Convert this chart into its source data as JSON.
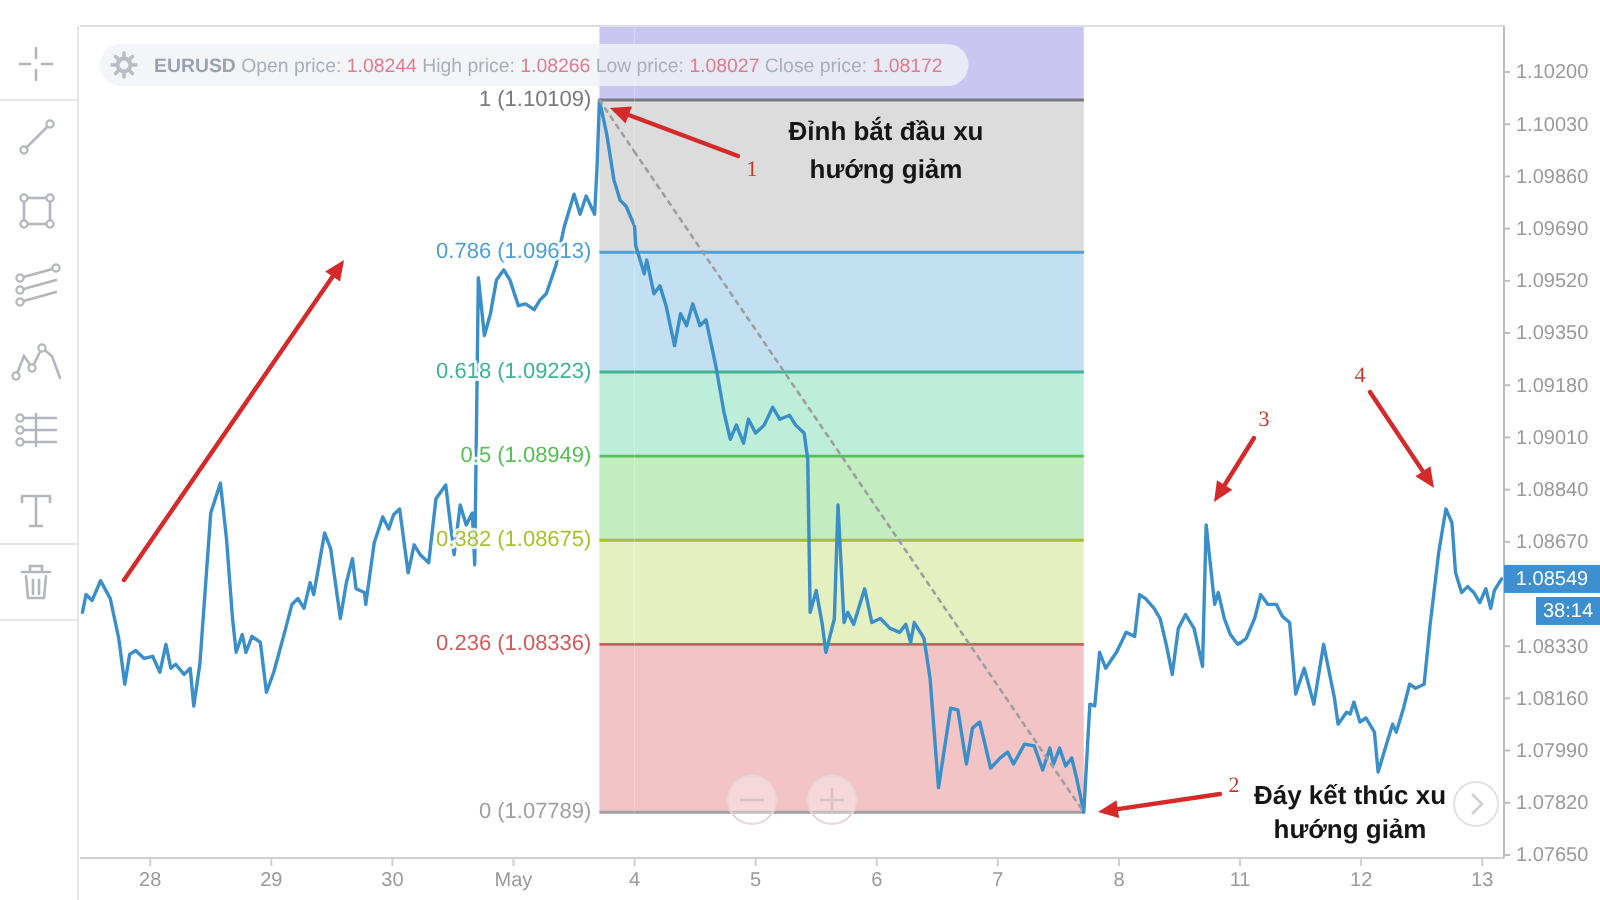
{
  "chart_data": [
    {
      "type": "line",
      "title": "EURUSD Open price: 1.08244 High price: 1.08266 Low price: 1.08027 Close price: 1.08172",
      "tick_labels": "x",
      "series": [
        {
          "color": "#3b8fc8",
          "x": [
            "--04-27T10:34",
            "--04-27T11:17",
            "--04-27T12:29",
            "--04-27T14:10",
            "--04-27T16:05",
            "--04-27T17:46",
            "--04-27T18:58",
            "--04-27T19:55",
            "--04-27T21:07",
            "--04-27T22:48",
            "--04-28T00:29",
            "--04-28T01:55",
            "--04-28T03:07",
            "--04-28T04:05",
            "--04-28T05:02",
            "--04-28T06:43",
            "--04-28T07:55",
            "--04-28T08:38",
            "--04-28T09:50",
            "--04-28T12:00",
            "--04-28T13:55",
            "--04-28T15:07",
            "--04-28T16:19",
            "--04-28T17:02",
            "--04-28T18:14",
            "--04-28T18:58",
            "--04-28T20:10",
            "--04-28T21:50",
            "--04-28T23:02",
            "--04-29T00:29",
            "--04-29T02:38",
            "--04-29T04:05",
            "--04-29T05:17",
            "--04-29T06:29",
            "--04-29T07:41",
            "--04-29T08:24",
            "--04-29T10:34",
            "--04-29T11:46",
            "--04-29T13:41",
            "--04-29T14:53",
            "--04-29T16:05",
            "--04-29T16:48",
            "--04-29T18:29",
            "--04-29T18:43",
            "--04-29T20:24",
            "--04-29T22:05",
            "--04-29T23:17",
            "--04-30T00:14",
            "--04-30T01:26",
            "--04-30T03:07",
            "--04-30T04:19",
            "--04-30T05:31",
            "--04-30T07:12",
            "--04-30T08:38",
            "--04-30T10:34",
            "--04-30T12:14",
            "--04-30T13:26",
            "--04-30T14:38",
            "--04-30T15:50",
            "--04-30T16:19",
            "--04-30T17:02",
            "--04-30T18:14",
            "--04-30T19:26",
            "--04-30T20:38",
            "--04-30T22:05",
            "--04-30T23:17",
            "--05-01T00:58",
            "--05-01T02:24",
            "--05-01T04:05",
            "--05-01T05:17",
            "--05-01T06:29",
            "--05-01T08:24",
            "--05-01T10:05",
            "--05-01T12:00",
            "--05-01T13:12",
            "--05-01T14:24",
            "--05-01T16:05",
            "--05-01T16:34",
            "--05-01T17:02",
            "--05-01T18:29",
            "--05-01T19:55",
            "--05-01T21:07",
            "--05-01T22:19",
            "--05-02T00:00"
          ],
          "values": [
            1.0844,
            1.08498,
            1.08479,
            1.08543,
            1.08485,
            1.08355,
            1.08206,
            1.08303,
            1.08316,
            1.0829,
            1.08297,
            1.08245,
            1.08336,
            1.08258,
            1.08271,
            1.08238,
            1.08258,
            1.08135,
            1.08271,
            1.08764,
            1.08861,
            1.0868,
            1.0842,
            1.0831,
            1.08368,
            1.0831,
            1.08362,
            1.08342,
            1.0818,
            1.08245,
            1.08375,
            1.08466,
            1.08485,
            1.08453,
            1.08537,
            1.08498,
            1.08699,
            1.08647,
            1.0842,
            1.08537,
            1.08615,
            1.08517,
            1.08505,
            1.08466,
            1.08667,
            1.08751,
            1.08712,
            1.08758,
            1.08777,
            1.08569,
            1.0866,
            1.08628,
            1.08602,
            1.0881,
            1.08855,
            1.08628,
            1.0879,
            1.08725,
            1.08764,
            1.08595,
            1.0953,
            1.09342,
            1.09413,
            1.09523,
            1.09556,
            1.09523,
            1.09439,
            1.09445,
            1.09426,
            1.09458,
            1.09478,
            1.09569,
            1.09698,
            1.09802,
            1.09737,
            1.09796,
            1.09737,
            1.09893,
            1.10109,
            1.09997,
            1.09848,
            1.09783,
            1.09763,
            1.09698
          ]
        },
        {
          "color": "#9e9e9e",
          "line_style": "dotted",
          "x": [
            "--05-01T17:02",
            "--05-02T00:00"
          ],
          "values": [
            1.10109,
            1.0994
          ]
        }
      ],
      "xlim": [
        "--04-27T10:05",
        "--05-02T00:00"
      ],
      "xticks": [
        {
          "value": "--04-28",
          "label": "28"
        },
        {
          "value": "--04-29",
          "label": "29"
        },
        {
          "value": "--04-30",
          "label": "30"
        },
        {
          "value": "--05-01",
          "label": "May"
        }
      ],
      "ylim": [
        1.0764,
        1.1035
      ],
      "bands": [
        {
          "axis": "y",
          "from": 1.10109,
          "to": 1.1035,
          "color": "#c9c7f1"
        },
        {
          "axis": "y",
          "from": 1.09613,
          "to": 1.10109,
          "color": "#dcdcdc"
        },
        {
          "axis": "y",
          "from": 1.09223,
          "to": 1.09613,
          "color": "#c3e0f3"
        },
        {
          "axis": "y",
          "from": 1.08949,
          "to": 1.09223,
          "color": "#bdeed9"
        },
        {
          "axis": "y",
          "from": 1.08675,
          "to": 1.08949,
          "color": "#c3ecc0"
        },
        {
          "axis": "y",
          "from": 1.08336,
          "to": 1.08675,
          "color": "#e4f0c0"
        },
        {
          "axis": "y",
          "from": 1.07789,
          "to": 1.08336,
          "color": "#f3c4c6"
        }
      ],
      "ref_lines": [
        {
          "axis": "y",
          "value": 1.10109,
          "label": "1 (1.10109)",
          "color": "#7a7a7a"
        },
        {
          "axis": "y",
          "value": 1.09613,
          "label": "0.786 (1.09613)",
          "color": "#4f9fd2"
        },
        {
          "axis": "y",
          "value": 1.09223,
          "label": "0.618 (1.09223)",
          "color": "#3fb394"
        },
        {
          "axis": "y",
          "value": 1.08949,
          "label": "0.5 (1.08949)",
          "color": "#56bf56"
        },
        {
          "axis": "y",
          "value": 1.08675,
          "label": "0.382 (1.08675)",
          "color": "#a9bf2e"
        },
        {
          "axis": "y",
          "value": 1.08336,
          "label": "0.236 (1.08336)",
          "color": "#cf5c5c"
        },
        {
          "axis": "y",
          "value": 1.07789,
          "label": "0 (1.07789)",
          "color": "#a0a0a0"
        }
      ]
    },
    {
      "type": "line",
      "tick_labels": "x",
      "series": [
        {
          "color": "#3b8fc8",
          "x": [
            "--05-04T00:00",
            "--05-04T00:14",
            "--05-04T01:55",
            "--05-04T02:24",
            "--05-04T03:50",
            "--05-04T05:02",
            "--05-04T06:14",
            "--05-04T07:55",
            "--05-04T09:07",
            "--05-04T10:19",
            "--05-04T11:31",
            "--05-04T12:58",
            "--05-04T14:10",
            "--05-04T16:05",
            "--05-04T17:46",
            "--05-04T18:58",
            "--05-04T20:10",
            "--05-04T21:36",
            "--05-04T22:34",
            "--05-05T00:00",
            "--05-05T01:41",
            "--05-05T03:22",
            "--05-05T04:48",
            "--05-05T06:43",
            "--05-05T07:55",
            "--05-05T09:36",
            "--05-05T10:19",
            "--05-05T10:48",
            "--05-05T12:00",
            "--05-05T13:12",
            "--05-05T13:55",
            "--05-05T15:36",
            "--05-05T16:19",
            "--05-05T17:31",
            "--05-05T18:14",
            "--05-05T19:26",
            "--05-05T21:36",
            "--05-05T23:02",
            "--05-06T00:43",
            "--05-06T02:38",
            "--05-06T04:34",
            "--05-06T05:46",
            "--05-06T06:43",
            "--05-06T07:26",
            "--05-06T09:22",
            "--05-06T10:34",
            "--05-06T12:14",
            "--05-06T14:38",
            "--05-06T16:05",
            "--05-06T17:46",
            "--05-06T18:58",
            "--05-06T20:24",
            "--05-06T22:34",
            "--05-07T00:29",
            "--05-07T01:55",
            "--05-07T03:07",
            "--05-07T05:17",
            "--05-07T07:12",
            "--05-07T08:53",
            "--05-07T10:19",
            "--05-07T11:02",
            "--05-07T12:14",
            "--05-07T13:26",
            "--05-07T14:38",
            "--05-07T15:36",
            "--05-07T17:02",
            "--05-07T18:14",
            "--05-07T19:12",
            "--05-07T20:10",
            "--05-07T21:22",
            "--05-07T23:31",
            "--05-08T01:26",
            "--05-08T03:07",
            "--05-08T04:05",
            "--05-08T05:17",
            "--05-08T06:58",
            "--05-08T08:10",
            "--05-08T09:22",
            "--05-08T10:34",
            "--05-08T11:46",
            "--05-08T13:12",
            "--05-08T14:53",
            "--05-08T16:34",
            "--05-08T17:17",
            "--05-08T18:58",
            "--05-08T19:41",
            "--05-08T20:53",
            "--05-08T22:05",
            "--05-08T23:31",
            "--05-09T00:00"
          ],
          "values": [
            1.09698,
            1.09634,
            1.09543,
            1.09588,
            1.09478,
            1.09504,
            1.09439,
            1.09309,
            1.09413,
            1.09374,
            1.09445,
            1.09374,
            1.09393,
            1.09244,
            1.09088,
            1.09004,
            1.0905,
            1.08991,
            1.09069,
            1.09024,
            1.0905,
            1.09108,
            1.09069,
            1.09082,
            1.0905,
            1.09024,
            1.08939,
            1.0844,
            1.08511,
            1.08401,
            1.0831,
            1.0842,
            1.0879,
            1.08407,
            1.0844,
            1.08401,
            1.08517,
            1.08407,
            1.0842,
            1.08388,
            1.08375,
            1.08401,
            1.08342,
            1.08407,
            1.08355,
            1.08225,
            1.07869,
            1.08128,
            1.08122,
            1.07946,
            1.08063,
            1.08083,
            1.07933,
            1.07966,
            1.07985,
            1.07946,
            1.08011,
            1.08005,
            1.07927,
            1.07998,
            1.07946,
            1.07998,
            1.0794,
            1.07966,
            1.07901,
            1.07789,
            1.08141,
            1.08135,
            1.0831,
            1.08258,
            1.0831,
            1.08375,
            1.08362,
            1.08498,
            1.08485,
            1.08453,
            1.0842,
            1.08336,
            1.08238,
            1.08388,
            1.08433,
            1.08388,
            1.08264,
            1.08725,
            1.08466,
            1.08505,
            1.0842,
            1.08368,
            1.08336,
            1.0834
          ]
        },
        {
          "color": "#9e9e9e",
          "line_style": "dotted",
          "x": [
            "--05-04T00:00",
            "--05-07T17:02"
          ],
          "values": [
            1.0994,
            1.07789
          ]
        }
      ],
      "xlim": [
        "--05-04T00:00",
        "--05-09T00:00"
      ],
      "xticks": [
        {
          "value": "--05-04",
          "label": "4"
        },
        {
          "value": "--05-05",
          "label": "5"
        },
        {
          "value": "--05-06",
          "label": "6"
        },
        {
          "value": "--05-07",
          "label": "7"
        },
        {
          "value": "--05-08",
          "label": "8"
        }
      ],
      "ylim": [
        1.0764,
        1.1035
      ],
      "bands": [
        {
          "axis": "y",
          "from": 1.10109,
          "to": 1.1035,
          "color": "#c9c7f1"
        },
        {
          "axis": "y",
          "from": 1.09613,
          "to": 1.10109,
          "color": "#dcdcdc"
        },
        {
          "axis": "y",
          "from": 1.09223,
          "to": 1.09613,
          "color": "#c3e0f3"
        },
        {
          "axis": "y",
          "from": 1.08949,
          "to": 1.09223,
          "color": "#bdeed9"
        },
        {
          "axis": "y",
          "from": 1.08675,
          "to": 1.08949,
          "color": "#c3ecc0"
        },
        {
          "axis": "y",
          "from": 1.08336,
          "to": 1.08675,
          "color": "#e4f0c0"
        },
        {
          "axis": "y",
          "from": 1.07789,
          "to": 1.08336,
          "color": "#f3c4c6"
        }
      ],
      "ref_lines": [
        {
          "axis": "y",
          "value": 1.10109,
          "color": "#7a7a7a"
        },
        {
          "axis": "y",
          "value": 1.09613,
          "color": "#4f9fd2"
        },
        {
          "axis": "y",
          "value": 1.09223,
          "color": "#3fb394"
        },
        {
          "axis": "y",
          "value": 1.08949,
          "color": "#56bf56"
        },
        {
          "axis": "y",
          "value": 1.08675,
          "color": "#a9bf2e"
        },
        {
          "axis": "y",
          "value": 1.08336,
          "color": "#cf5c5c"
        },
        {
          "axis": "y",
          "value": 1.07789,
          "color": "#a0a0a0"
        }
      ],
      "annotations": [
        "1",
        "Đỉnh bắt đầu xu hướng giảm",
        "2",
        "3"
      ]
    },
    {
      "type": "line",
      "series": [
        {
          "color": "#3b8fc8",
          "x": [
            "--05-11T00:00",
            "--05-11T01:12",
            "--05-11T02:53",
            "--05-11T04:05",
            "--05-11T05:31",
            "--05-11T07:12",
            "--05-11T08:24",
            "--05-11T09:50",
            "--05-11T11:02",
            "--05-11T12:43",
            "--05-11T14:38",
            "--05-11T16:34",
            "--05-11T17:31",
            "--05-11T18:43",
            "--05-11T19:26",
            "--05-11T21:07",
            "--05-11T21:50",
            "--05-11T22:34",
            "--05-11T23:46",
            "--05-12T00:58",
            "--05-12T02:38",
            "--05-12T03:22",
            "--05-12T05:02",
            "--05-12T06:14",
            "--05-12T06:58",
            "--05-12T08:24",
            "--05-12T09:36",
            "--05-12T10:48",
            "--05-12T12:29",
            "--05-12T13:41",
            "--05-12T15:22",
            "--05-12T16:48",
            "--05-12T18:00",
            "--05-12T18:43",
            "--05-12T19:55",
            "--05-12T21:07",
            "--05-12T22:19",
            "--05-12T23:31",
            "--05-13T00:43",
            "--05-13T01:41",
            "--05-13T02:24",
            "--05-13T03:50"
          ],
          "values": [
            1.0834,
            1.08355,
            1.0842,
            1.08498,
            1.08466,
            1.08466,
            1.08427,
            1.08407,
            1.08174,
            1.08258,
            1.08141,
            1.08336,
            1.08258,
            1.08161,
            1.08076,
            1.08115,
            1.08109,
            1.08148,
            1.08083,
            1.08096,
            1.0805,
            1.0792,
            1.08011,
            1.08076,
            1.0805,
            1.08128,
            1.08206,
            1.08193,
            1.08206,
            1.08401,
            1.08634,
            1.08777,
            1.08732,
            1.08569,
            1.08505,
            1.08524,
            1.08505,
            1.08472,
            1.08517,
            1.08453,
            1.08511,
            1.08549
          ]
        }
      ],
      "xlim": [
        "--05-11T00:00",
        "--05-13T04:19"
      ],
      "xticks": [
        {
          "value": "--05-11",
          "label": "11"
        },
        {
          "value": "--05-12",
          "label": "12"
        },
        {
          "value": "--05-13",
          "label": "13"
        }
      ],
      "ylim": [
        1.0764,
        1.1035
      ],
      "yticks": [
        {
          "value": 1.0765,
          "label": "1.07650"
        },
        {
          "value": 1.0782,
          "label": "1.07820"
        },
        {
          "value": 1.0799,
          "label": "1.07990"
        },
        {
          "value": 1.0816,
          "label": "1.08160"
        },
        {
          "value": 1.0833,
          "label": "1.08330"
        },
        {
          "value": 1.0867,
          "label": "1.08670"
        },
        {
          "value": 1.0884,
          "label": "1.08840"
        },
        {
          "value": 1.0901,
          "label": "1.09010"
        },
        {
          "value": 1.0918,
          "label": "1.09180"
        },
        {
          "value": 1.0935,
          "label": "1.09350"
        },
        {
          "value": 1.0952,
          "label": "1.09520"
        },
        {
          "value": 1.0969,
          "label": "1.09690"
        },
        {
          "value": 1.0986,
          "label": "1.09860"
        },
        {
          "value": 1.1003,
          "label": "1.10030"
        },
        {
          "value": 1.102,
          "label": "1.10200"
        }
      ],
      "annotations": [
        "Đáy kết thúc xu hướng giảm",
        "4",
        "1.08549",
        "38:14"
      ]
    }
  ]
}
